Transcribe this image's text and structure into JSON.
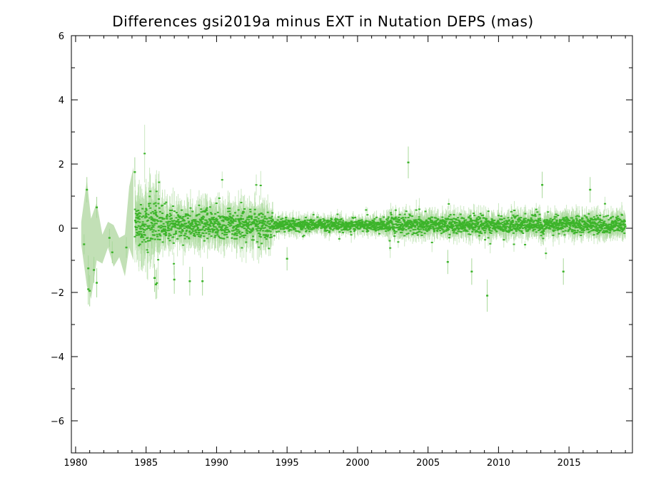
{
  "chart_data": {
    "type": "scatter",
    "title": "Differences gsi2019a minus EXT in Nutation DEPS (mas)",
    "xlabel": "",
    "ylabel": "",
    "xlim": [
      1979.7,
      2019.5
    ],
    "ylim": [
      -7,
      6
    ],
    "x_ticks": [
      1980,
      1985,
      1990,
      1995,
      2000,
      2005,
      2010,
      2015
    ],
    "x_tick_labels": [
      "1980",
      "1985",
      "1990",
      "1995",
      "2000",
      "2005",
      "2010",
      "2015"
    ],
    "y_ticks": [
      -6,
      -4,
      -2,
      0,
      2,
      4,
      6
    ],
    "y_tick_labels": [
      "−6",
      "−4",
      "−2",
      "0",
      "2",
      "4",
      "6"
    ],
    "grid": false,
    "legend": "none",
    "colors": {
      "points": "#3cb42a",
      "errorbars": "#a8d89a",
      "band": "#c2e0b6",
      "axes": "#000000"
    },
    "early_band": {
      "x": [
        1980.4,
        1980.8,
        1981.1,
        1981.5,
        1981.9,
        1982.3,
        1982.7,
        1983.1,
        1983.5,
        1983.8,
        1984.1
      ],
      "upper": [
        0.2,
        1.5,
        0.3,
        0.8,
        -0.2,
        0.2,
        0.1,
        -0.3,
        -0.2,
        1.3,
        1.9
      ],
      "lower": [
        -0.5,
        -1.8,
        -2.2,
        -1.0,
        -1.1,
        -0.6,
        -1.2,
        -0.9,
        -1.5,
        -0.6,
        -1.0
      ]
    },
    "notable_points": [
      {
        "x": 1980.6,
        "y": -0.5
      },
      {
        "x": 1980.8,
        "y": 1.2
      },
      {
        "x": 1980.9,
        "y": -1.25
      },
      {
        "x": 1980.9,
        "y": -1.9
      },
      {
        "x": 1981.0,
        "y": -1.95
      },
      {
        "x": 1981.3,
        "y": -1.3
      },
      {
        "x": 1981.5,
        "y": -1.7
      },
      {
        "x": 1981.5,
        "y": 0.65
      },
      {
        "x": 1982.4,
        "y": -0.3
      },
      {
        "x": 1982.6,
        "y": -0.75
      },
      {
        "x": 1983.6,
        "y": -0.6
      },
      {
        "x": 1984.2,
        "y": 1.75
      },
      {
        "x": 1985.6,
        "y": -1.55
      },
      {
        "x": 1985.7,
        "y": -1.75
      },
      {
        "x": 1987.0,
        "y": -1.6
      },
      {
        "x": 1988.1,
        "y": -1.65
      },
      {
        "x": 1989.0,
        "y": -1.65
      },
      {
        "x": 1995.0,
        "y": -0.95
      },
      {
        "x": 2003.6,
        "y": 2.05
      },
      {
        "x": 2006.4,
        "y": -1.05
      },
      {
        "x": 2008.1,
        "y": -1.35
      },
      {
        "x": 2009.2,
        "y": -2.1
      },
      {
        "x": 2013.1,
        "y": 1.35
      },
      {
        "x": 2014.6,
        "y": -1.35
      },
      {
        "x": 2016.5,
        "y": 1.2
      }
    ],
    "bulk_series": {
      "x_start": 1984.2,
      "x_end": 2019.0,
      "points_per_year": 90,
      "center": 0.1,
      "spread_by_period": [
        {
          "from": 1984.2,
          "to": 1986.0,
          "std": 0.35
        },
        {
          "from": 1986.0,
          "to": 1994.0,
          "std": 0.22
        },
        {
          "from": 1994.0,
          "to": 2002.0,
          "std": 0.09
        },
        {
          "from": 2002.0,
          "to": 2019.0,
          "std": 0.13
        }
      ]
    }
  }
}
